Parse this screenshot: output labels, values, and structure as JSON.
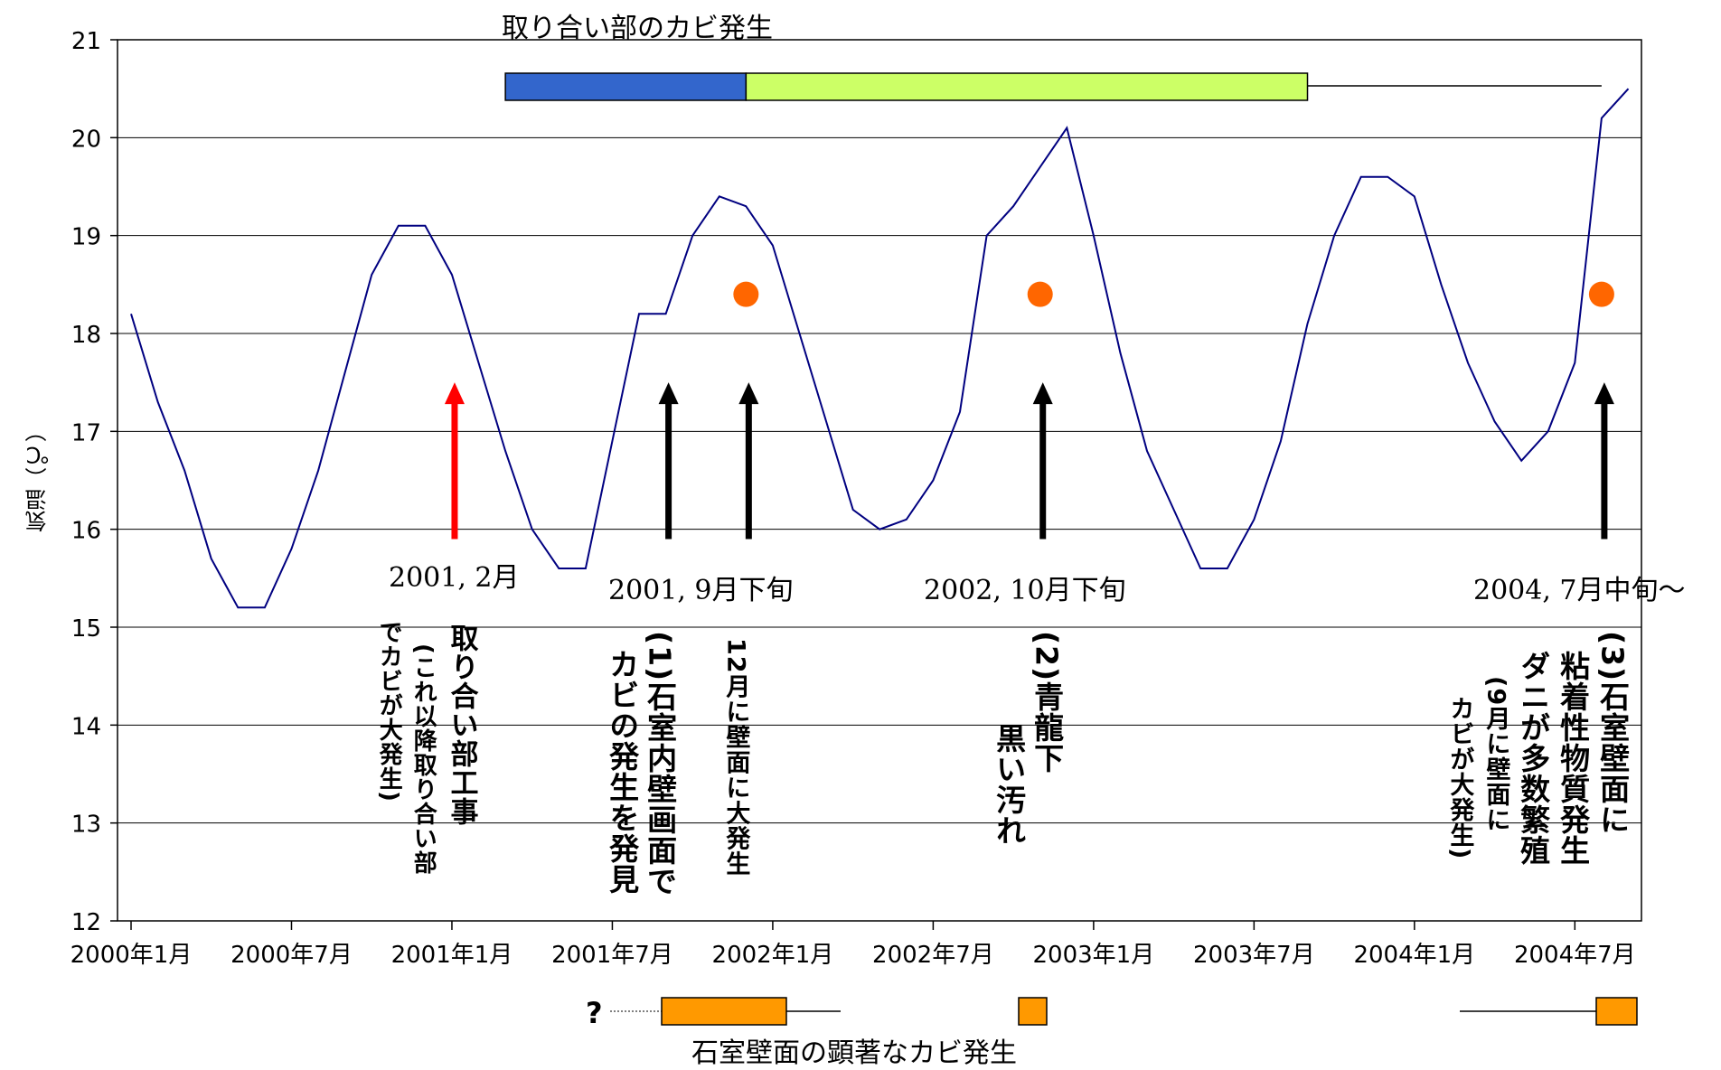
{
  "chart_data": {
    "type": "line",
    "title": "取り合い部のカビ発生",
    "ylabel": "気温（℃）",
    "xlabel": "",
    "ylim": [
      12,
      21
    ],
    "yticks": [
      "12",
      "13",
      "14",
      "15",
      "16",
      "17",
      "18",
      "19",
      "20",
      "21"
    ],
    "xticks": [
      "2000年1月",
      "2000年7月",
      "2001年1月",
      "2001年7月",
      "2002年1月",
      "2002年7月",
      "2003年1月",
      "2003年7月",
      "2004年1月",
      "2004年7月"
    ],
    "grid": "horizontal",
    "line_color": "#000080",
    "x_start": "2000年1月",
    "series": [
      {
        "values": [
          18.2,
          17.3,
          16.6,
          15.7,
          15.2,
          15.2,
          15.8,
          16.6,
          17.6,
          18.6,
          19.1,
          19.1,
          18.6,
          17.7,
          16.8,
          16.0,
          15.6,
          15.6,
          16.9,
          18.2,
          18.2,
          19.0,
          19.4,
          19.3,
          18.9,
          18.0,
          17.1,
          16.2,
          16.0,
          16.1,
          16.5,
          17.2,
          19.0,
          19.3,
          19.7,
          20.1,
          19.0,
          17.8,
          16.8,
          16.2,
          15.6,
          15.6,
          16.1,
          16.9,
          18.1,
          19.0,
          19.6,
          19.6,
          19.4,
          18.5,
          17.7,
          17.1,
          16.7,
          17.0,
          17.7,
          20.2,
          20.5
        ]
      }
    ],
    "markers": {
      "color": "#ff6600",
      "points": [
        {
          "x": "2001年12月",
          "y": 18.4
        },
        {
          "x": "2002年11月",
          "y": 18.4
        },
        {
          "x": "2004年8月",
          "y": 18.4
        }
      ]
    },
    "top_bar": {
      "colors": [
        "#3366cc",
        "#ccff66"
      ],
      "segments": [
        {
          "start": "2001年3月",
          "end": "2001年12月",
          "color": "#3366cc"
        },
        {
          "start": "2001年12月",
          "end": "2003年9月",
          "color": "#ccff66"
        }
      ],
      "line_end": "2004年8月"
    },
    "arrows": [
      {
        "x": "2001年1月",
        "color": "#ff0000",
        "label": "2001, 2月",
        "notes": [
          "取り合い部工事",
          "(これ以降取り合い部",
          "でカビが大発生)"
        ]
      },
      {
        "x": "2001年9月",
        "color": "#000000",
        "label": "2001, 9月下旬",
        "notes": [
          "(1)石室内壁画面で",
          "カビの発生を発見"
        ]
      },
      {
        "x": "2001年12月",
        "color": "#000000",
        "label": "",
        "notes": [
          "12月に壁面に大発生"
        ]
      },
      {
        "x": "2002年11月",
        "color": "#000000",
        "label": "2002, 10月下旬",
        "notes": [
          "(2)青龍下",
          "黒い汚れ"
        ]
      },
      {
        "x": "2004年8月",
        "color": "#000000",
        "label": "2004, 7月中旬～",
        "notes": [
          "(3)石室壁面に",
          "粘着性物質発生",
          "ダニが多数繁殖",
          "(9月に壁面に",
          "カビが大発生)"
        ]
      }
    ],
    "bottom_bar": {
      "title": "石室壁面の顕著なカビ発生",
      "question": "?",
      "color": "#ff9900"
    }
  }
}
